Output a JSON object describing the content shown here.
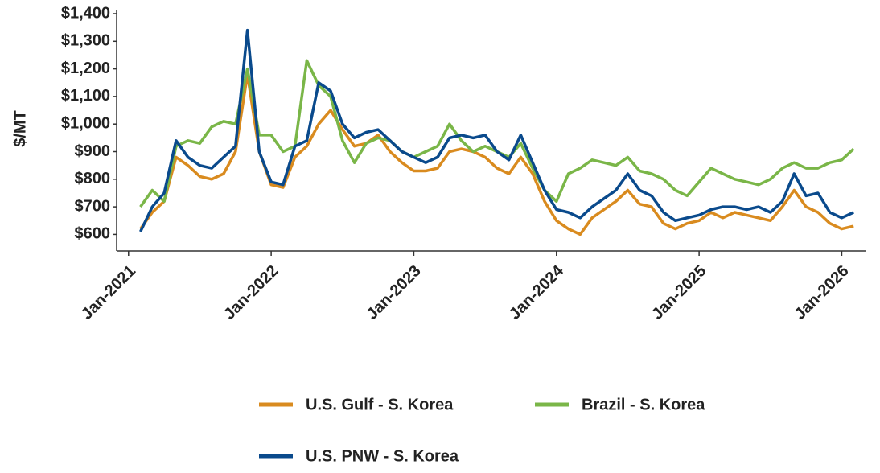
{
  "chart_data": {
    "type": "line",
    "y_label": "$/MT",
    "x": [
      "2021-02",
      "2021-03",
      "2021-04",
      "2021-05",
      "2021-06",
      "2021-07",
      "2021-08",
      "2021-09",
      "2021-10",
      "2021-11",
      "2021-12",
      "2022-01",
      "2022-02",
      "2022-03",
      "2022-04",
      "2022-05",
      "2022-06",
      "2022-07",
      "2022-08",
      "2022-09",
      "2022-10",
      "2022-11",
      "2022-12",
      "2023-01",
      "2023-02",
      "2023-03",
      "2023-04",
      "2023-05",
      "2023-06",
      "2023-07",
      "2023-08",
      "2023-09",
      "2023-10",
      "2023-11",
      "2023-12",
      "2024-01",
      "2024-02",
      "2024-03",
      "2024-04",
      "2024-05",
      "2024-06",
      "2024-07",
      "2024-08",
      "2024-09",
      "2024-10",
      "2024-11",
      "2024-12",
      "2025-01",
      "2025-02",
      "2025-03",
      "2025-04",
      "2025-05",
      "2025-06",
      "2025-07",
      "2025-08",
      "2025-09",
      "2025-10",
      "2025-11",
      "2025-12",
      "2026-01",
      "2026-02"
    ],
    "series": [
      {
        "name": "U.S. Gulf - S. Korea",
        "color": "#d98b1f",
        "values": [
          620,
          680,
          720,
          880,
          850,
          810,
          800,
          820,
          900,
          1180,
          900,
          780,
          770,
          880,
          920,
          1000,
          1050,
          980,
          920,
          930,
          960,
          900,
          860,
          830,
          830,
          840,
          900,
          910,
          900,
          880,
          840,
          820,
          880,
          820,
          720,
          650,
          620,
          600,
          660,
          690,
          720,
          760,
          710,
          700,
          640,
          620,
          640,
          650,
          680,
          660,
          680,
          670,
          660,
          650,
          700,
          760,
          700,
          680,
          640,
          620,
          630
        ]
      },
      {
        "name": "Brazil - S. Korea",
        "color": "#7ab648",
        "values": [
          700,
          760,
          720,
          920,
          940,
          930,
          990,
          1010,
          1000,
          1200,
          960,
          960,
          900,
          920,
          1230,
          1140,
          1100,
          940,
          860,
          930,
          950,
          940,
          900,
          880,
          900,
          920,
          1000,
          940,
          900,
          920,
          900,
          880,
          930,
          840,
          760,
          720,
          820,
          840,
          870,
          860,
          850,
          880,
          830,
          820,
          800,
          760,
          740,
          790,
          840,
          820,
          800,
          790,
          780,
          800,
          840,
          860,
          840,
          840,
          860,
          870,
          910
        ]
      },
      {
        "name": "U.S. PNW - S. Korea",
        "color": "#0a4a8c",
        "values": [
          610,
          700,
          750,
          940,
          880,
          850,
          840,
          880,
          920,
          1340,
          900,
          790,
          780,
          920,
          940,
          1150,
          1120,
          1000,
          950,
          970,
          980,
          940,
          900,
          880,
          860,
          880,
          950,
          960,
          950,
          960,
          900,
          870,
          960,
          860,
          760,
          690,
          680,
          660,
          700,
          730,
          760,
          820,
          760,
          740,
          680,
          650,
          660,
          670,
          690,
          700,
          700,
          690,
          700,
          680,
          720,
          820,
          740,
          750,
          680,
          660,
          680
        ]
      }
    ],
    "xlim": [
      "2020-12",
      "2026-03"
    ],
    "xticks": [
      {
        "value": "2021-01",
        "label": "Jan-2021"
      },
      {
        "value": "2022-01",
        "label": "Jan-2022"
      },
      {
        "value": "2023-01",
        "label": "Jan-2023"
      },
      {
        "value": "2024-01",
        "label": "Jan-2024"
      },
      {
        "value": "2025-01",
        "label": "Jan-2025"
      },
      {
        "value": "2026-01",
        "label": "Jan-2026"
      }
    ],
    "ylim": [
      540,
      1400
    ],
    "yticks": [
      {
        "value": 600,
        "label": "$600"
      },
      {
        "value": 700,
        "label": "$700"
      },
      {
        "value": 800,
        "label": "$800"
      },
      {
        "value": 900,
        "label": "$900"
      },
      {
        "value": 1000,
        "label": "$1,000"
      },
      {
        "value": 1100,
        "label": "$1,100"
      },
      {
        "value": 1200,
        "label": "$1,200"
      },
      {
        "value": 1300,
        "label": "$1,300"
      },
      {
        "value": 1400,
        "label": "$1,400"
      }
    ],
    "grid": false
  }
}
